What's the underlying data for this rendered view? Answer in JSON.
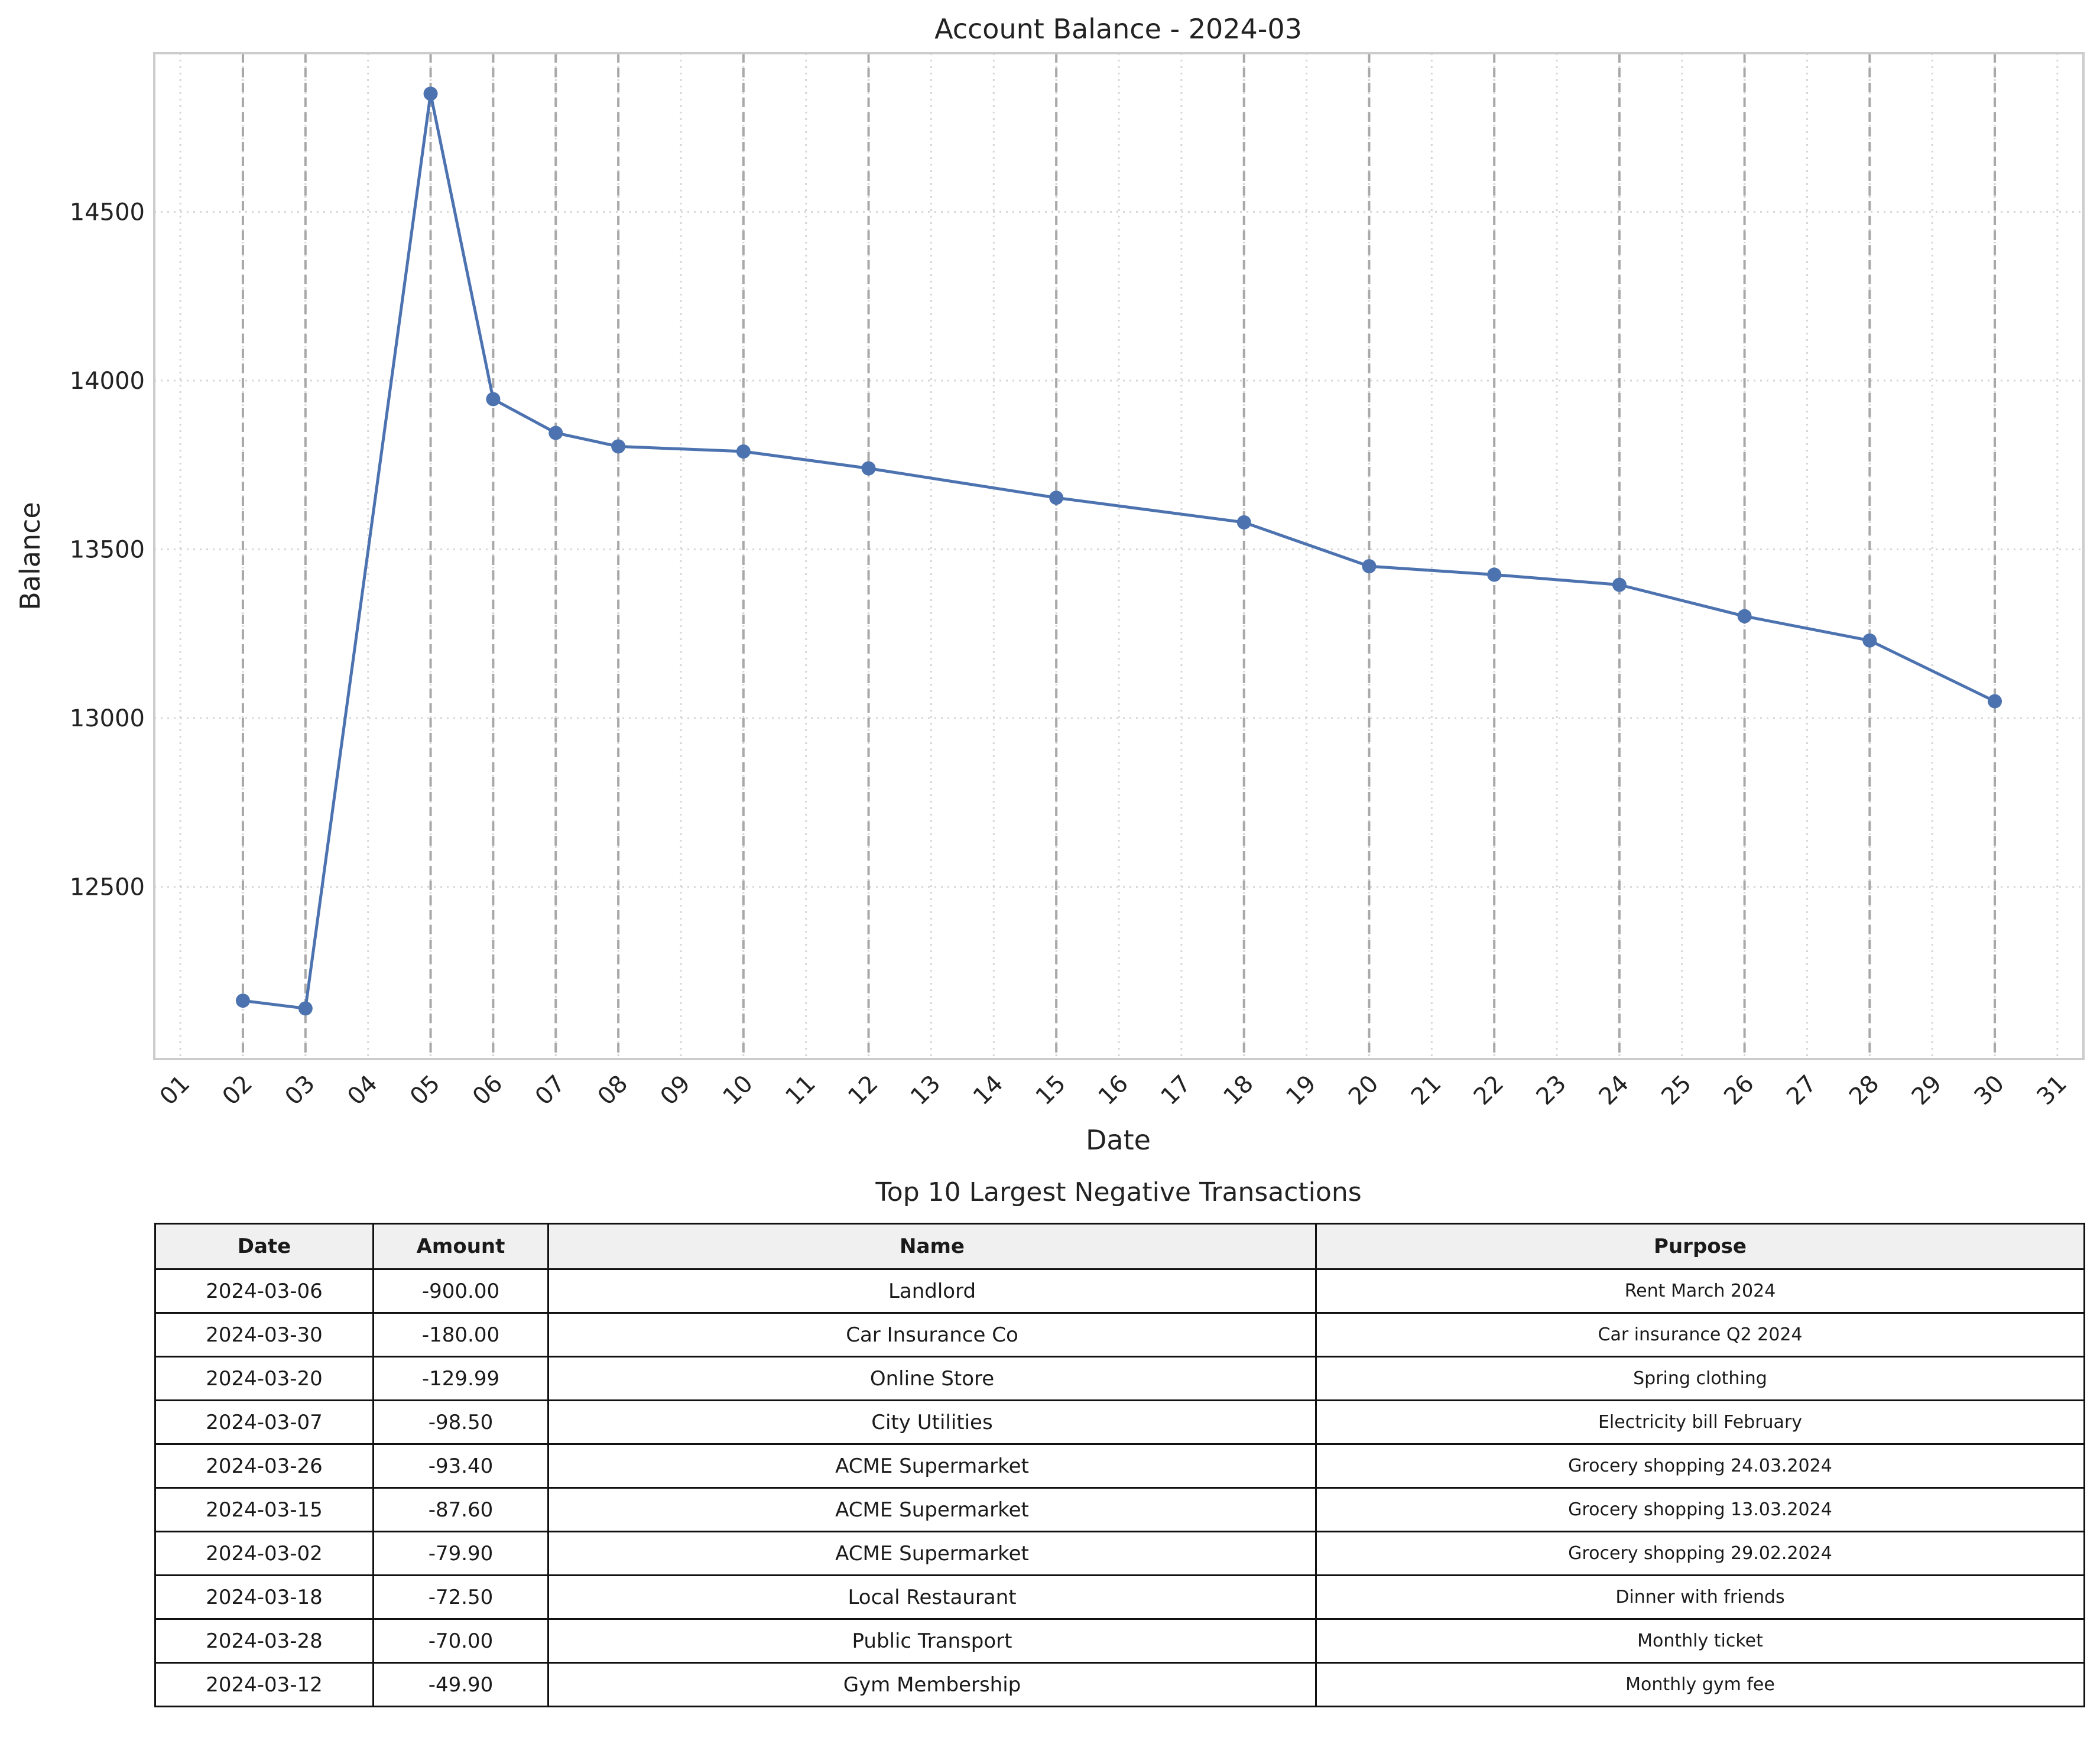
{
  "chart_data": [
    {
      "type": "line",
      "title": "Account Balance - 2024-03",
      "xlabel": "Date",
      "ylabel": "Balance",
      "x_ticks": [
        "01",
        "02",
        "03",
        "04",
        "05",
        "06",
        "07",
        "08",
        "09",
        "10",
        "11",
        "12",
        "13",
        "14",
        "15",
        "16",
        "17",
        "18",
        "19",
        "20",
        "21",
        "22",
        "23",
        "24",
        "25",
        "26",
        "27",
        "28",
        "29",
        "30",
        "31"
      ],
      "y_ticks": [
        12500,
        13000,
        13500,
        14000,
        14500
      ],
      "ylim": [
        11990,
        14970
      ],
      "xlim": [
        "2024-02-29T14:00",
        "2024-03-31T10:00"
      ],
      "grid": true,
      "transaction_day_markers": [
        "2024-03-02",
        "2024-03-03",
        "2024-03-05",
        "2024-03-06",
        "2024-03-07",
        "2024-03-08",
        "2024-03-10",
        "2024-03-12",
        "2024-03-15",
        "2024-03-18",
        "2024-03-20",
        "2024-03-22",
        "2024-03-24",
        "2024-03-26",
        "2024-03-28",
        "2024-03-30"
      ],
      "series": [
        {
          "color": "#4c72b0",
          "points": [
            {
              "x": "2024-03-02",
              "y": 12163
            },
            {
              "x": "2024-03-03",
              "y": 12140
            },
            {
              "x": "2024-03-05",
              "y": 14850
            },
            {
              "x": "2024-03-06",
              "y": 13945
            },
            {
              "x": "2024-03-07",
              "y": 13845
            },
            {
              "x": "2024-03-08",
              "y": 13805
            },
            {
              "x": "2024-03-10",
              "y": 13790
            },
            {
              "x": "2024-03-12",
              "y": 13740
            },
            {
              "x": "2024-03-15",
              "y": 13653
            },
            {
              "x": "2024-03-18",
              "y": 13580
            },
            {
              "x": "2024-03-20",
              "y": 13450
            },
            {
              "x": "2024-03-22",
              "y": 13425
            },
            {
              "x": "2024-03-24",
              "y": 13395
            },
            {
              "x": "2024-03-26",
              "y": 13302
            },
            {
              "x": "2024-03-28",
              "y": 13230
            },
            {
              "x": "2024-03-30",
              "y": 13050
            }
          ]
        }
      ]
    },
    {
      "type": "table",
      "title": "Top 10 Largest Negative Transactions",
      "columns": [
        "Date",
        "Amount",
        "Name",
        "Purpose"
      ],
      "rows": [
        [
          "2024-03-06",
          "-900.00",
          "Landlord",
          "Rent March 2024"
        ],
        [
          "2024-03-30",
          "-180.00",
          "Car Insurance Co",
          "Car insurance Q2 2024"
        ],
        [
          "2024-03-20",
          "-129.99",
          "Online Store",
          "Spring clothing"
        ],
        [
          "2024-03-07",
          "-98.50",
          "City Utilities",
          "Electricity bill February"
        ],
        [
          "2024-03-26",
          "-93.40",
          "ACME Supermarket",
          "Grocery shopping 24.03.2024"
        ],
        [
          "2024-03-15",
          "-87.60",
          "ACME Supermarket",
          "Grocery shopping 13.03.2024"
        ],
        [
          "2024-03-02",
          "-79.90",
          "ACME Supermarket",
          "Grocery shopping 29.02.2024"
        ],
        [
          "2024-03-18",
          "-72.50",
          "Local Restaurant",
          "Dinner with friends"
        ],
        [
          "2024-03-28",
          "-70.00",
          "Public Transport",
          "Monthly ticket"
        ],
        [
          "2024-03-12",
          "-49.90",
          "Gym Membership",
          "Monthly gym fee"
        ]
      ]
    }
  ]
}
